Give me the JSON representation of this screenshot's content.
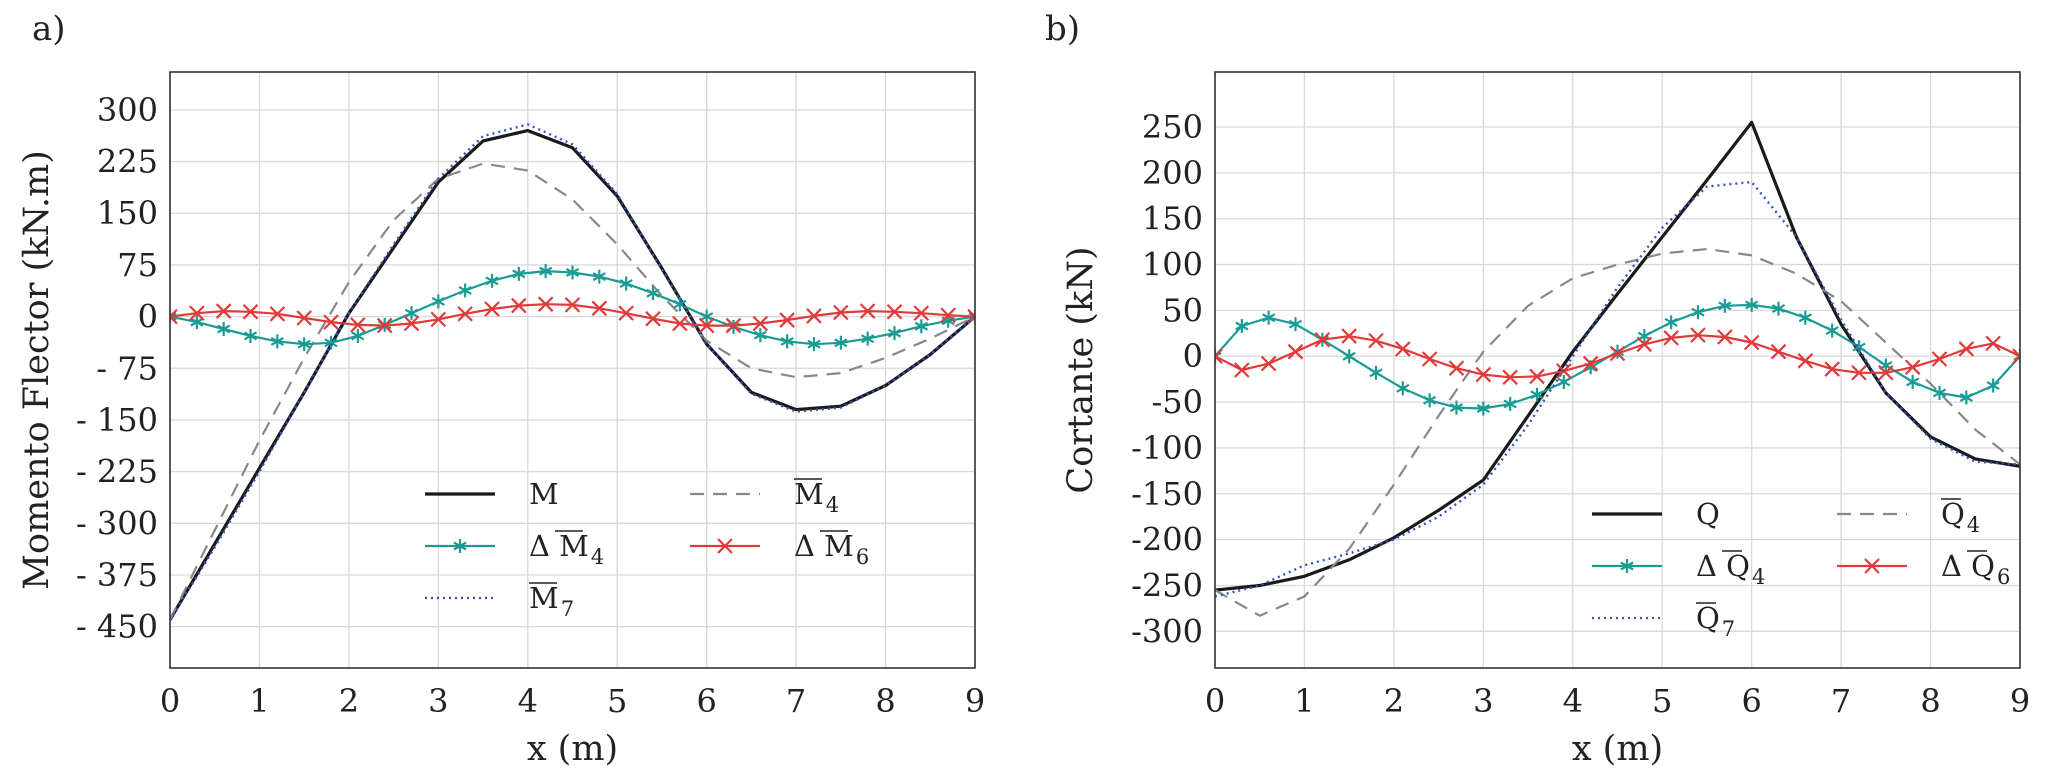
{
  "chart_data": [
    {
      "type": "line",
      "panel_label": "a)",
      "xlabel": "x (m)",
      "ylabel": "Momento Flector (kN.m)",
      "xlim": [
        0,
        9
      ],
      "ylim": [
        -510,
        355
      ],
      "x_ticks": [
        0,
        1,
        2,
        3,
        4,
        5,
        6,
        7,
        8,
        9
      ],
      "x_tick_labels": [
        "0",
        "1",
        "2",
        "3",
        "4",
        "5",
        "6",
        "7",
        "8",
        "9"
      ],
      "y_ticks": [
        300,
        225,
        150,
        75,
        0,
        -75,
        -150,
        -225,
        -300,
        -375,
        -450
      ],
      "y_tick_labels": [
        "300",
        "225",
        "150",
        "75",
        "0",
        "- 75",
        "- 150",
        "- 225",
        "- 300",
        "- 375",
        "- 450"
      ],
      "grid": true,
      "legend_position": "bottom-center",
      "series": [
        {
          "name": "M",
          "sub": "",
          "bar": false,
          "delta": false,
          "style": "solid",
          "color": "#1a1a1a",
          "marker": "none",
          "x": [
            0,
            0.5,
            1,
            1.5,
            2,
            2.5,
            3,
            3.5,
            4,
            4.5,
            5,
            5.5,
            6,
            6.5,
            7,
            7.5,
            8,
            8.5,
            9
          ],
          "y": [
            -440,
            -330,
            -220,
            -110,
            5,
            100,
            195,
            255,
            270,
            245,
            175,
            70,
            -40,
            -110,
            -135,
            -130,
            -100,
            -55,
            0
          ]
        },
        {
          "name": "M",
          "sub": "4",
          "bar": true,
          "delta": false,
          "style": "dashed",
          "color": "#888888",
          "marker": "none",
          "x": [
            0,
            0.5,
            1,
            1.5,
            2,
            2.5,
            3,
            3.5,
            4,
            4.5,
            5,
            5.5,
            6,
            6.5,
            7,
            7.5,
            8,
            8.5,
            9
          ],
          "y": [
            -440,
            -310,
            -180,
            -60,
            50,
            140,
            200,
            222,
            212,
            170,
            105,
            30,
            -35,
            -75,
            -88,
            -82,
            -60,
            -32,
            0
          ]
        },
        {
          "name": "M",
          "sub": "4",
          "bar": true,
          "delta": true,
          "style": "solid",
          "color": "#1a9c94",
          "marker": "star",
          "x": [
            0,
            0.3,
            0.6,
            0.9,
            1.2,
            1.5,
            1.8,
            2.1,
            2.4,
            2.7,
            3.0,
            3.3,
            3.6,
            3.9,
            4.2,
            4.5,
            4.8,
            5.1,
            5.4,
            5.7,
            6.0,
            6.3,
            6.6,
            6.9,
            7.2,
            7.5,
            7.8,
            8.1,
            8.4,
            8.7,
            9.0
          ],
          "y": [
            0,
            -8,
            -18,
            -28,
            -36,
            -40,
            -38,
            -28,
            -12,
            5,
            22,
            38,
            52,
            62,
            66,
            64,
            58,
            48,
            34,
            18,
            0,
            -15,
            -27,
            -36,
            -40,
            -38,
            -32,
            -24,
            -14,
            -6,
            0
          ]
        },
        {
          "name": "M",
          "sub": "6",
          "bar": true,
          "delta": true,
          "style": "solid",
          "color": "#e03a3a",
          "marker": "x",
          "x": [
            0,
            0.3,
            0.6,
            0.9,
            1.2,
            1.5,
            1.8,
            2.1,
            2.4,
            2.7,
            3.0,
            3.3,
            3.6,
            3.9,
            4.2,
            4.5,
            4.8,
            5.1,
            5.4,
            5.7,
            6.0,
            6.3,
            6.6,
            6.9,
            7.2,
            7.5,
            7.8,
            8.1,
            8.4,
            8.7,
            9.0
          ],
          "y": [
            0,
            5,
            8,
            7,
            4,
            -2,
            -8,
            -12,
            -13,
            -10,
            -4,
            4,
            11,
            16,
            18,
            17,
            12,
            5,
            -3,
            -10,
            -13,
            -13,
            -10,
            -5,
            1,
            6,
            8,
            7,
            5,
            2,
            0
          ]
        },
        {
          "name": "M",
          "sub": "7",
          "bar": true,
          "delta": false,
          "style": "dotted",
          "color": "#3355bb",
          "marker": "none",
          "x": [
            0,
            0.5,
            1,
            1.5,
            2,
            2.5,
            3,
            3.5,
            4,
            4.5,
            5,
            5.5,
            6,
            6.5,
            7,
            7.5,
            8,
            8.5,
            9
          ],
          "y": [
            -440,
            -335,
            -225,
            -110,
            5,
            105,
            200,
            262,
            279,
            250,
            178,
            68,
            -40,
            -112,
            -138,
            -132,
            -100,
            -55,
            0
          ]
        }
      ]
    },
    {
      "type": "line",
      "panel_label": "b)",
      "xlabel": "x (m)",
      "ylabel": "Cortante (kN)",
      "xlim": [
        0,
        9
      ],
      "ylim": [
        -340,
        310
      ],
      "x_ticks": [
        0,
        1,
        2,
        3,
        4,
        5,
        6,
        7,
        8,
        9
      ],
      "x_tick_labels": [
        "0",
        "1",
        "2",
        "3",
        "4",
        "5",
        "6",
        "7",
        "8",
        "9"
      ],
      "y_ticks": [
        250,
        200,
        150,
        100,
        50,
        0,
        -50,
        -100,
        -150,
        -200,
        -250,
        -300
      ],
      "y_tick_labels": [
        "250",
        "200",
        "150",
        "100",
        "50",
        "0",
        "-50",
        "-100",
        "-150",
        "-200",
        "-250",
        "-300"
      ],
      "grid": true,
      "legend_position": "bottom-right",
      "series": [
        {
          "name": "Q",
          "sub": "",
          "bar": false,
          "delta": false,
          "style": "solid",
          "color": "#1a1a1a",
          "marker": "none",
          "x": [
            0,
            0.5,
            1,
            1.5,
            2,
            2.5,
            3,
            3.5,
            4,
            4.5,
            5,
            5.5,
            6,
            6.5,
            7,
            7.5,
            8,
            8.5,
            9
          ],
          "y": [
            -255,
            -250,
            -240,
            -222,
            -198,
            -168,
            -135,
            -65,
            5,
            68,
            130,
            192,
            255,
            130,
            35,
            -40,
            -88,
            -112,
            -120
          ]
        },
        {
          "name": "Q",
          "sub": "4",
          "bar": true,
          "delta": false,
          "style": "dashed",
          "color": "#888888",
          "marker": "none",
          "x": [
            0,
            0.5,
            1,
            1.5,
            2,
            2.5,
            3,
            3.5,
            4,
            4.5,
            5,
            5.5,
            6,
            6.5,
            7,
            7.5,
            8,
            8.5,
            9
          ],
          "y": [
            -255,
            -283,
            -262,
            -210,
            -140,
            -65,
            5,
            55,
            85,
            100,
            112,
            117,
            110,
            90,
            60,
            15,
            -30,
            -80,
            -118
          ]
        },
        {
          "name": "Q",
          "sub": "4",
          "bar": true,
          "delta": true,
          "style": "solid",
          "color": "#1a9c94",
          "marker": "star",
          "x": [
            0,
            0.3,
            0.6,
            0.9,
            1.2,
            1.5,
            1.8,
            2.1,
            2.4,
            2.7,
            3.0,
            3.3,
            3.6,
            3.9,
            4.2,
            4.5,
            4.8,
            5.1,
            5.4,
            5.7,
            6.0,
            6.3,
            6.6,
            6.9,
            7.2,
            7.5,
            7.8,
            8.1,
            8.4,
            8.7,
            9.0
          ],
          "y": [
            0,
            33,
            42,
            35,
            18,
            0,
            -18,
            -35,
            -48,
            -56,
            -57,
            -52,
            -42,
            -28,
            -12,
            5,
            22,
            37,
            48,
            55,
            56,
            52,
            42,
            28,
            10,
            -10,
            -28,
            -40,
            -45,
            -32,
            0
          ]
        },
        {
          "name": "Q",
          "sub": "6",
          "bar": true,
          "delta": true,
          "style": "solid",
          "color": "#e03a3a",
          "marker": "x",
          "x": [
            0,
            0.3,
            0.6,
            0.9,
            1.2,
            1.5,
            1.8,
            2.1,
            2.4,
            2.7,
            3.0,
            3.3,
            3.6,
            3.9,
            4.2,
            4.5,
            4.8,
            5.1,
            5.4,
            5.7,
            6.0,
            6.3,
            6.6,
            6.9,
            7.2,
            7.5,
            7.8,
            8.1,
            8.4,
            8.7,
            9.0
          ],
          "y": [
            0,
            -15,
            -8,
            5,
            18,
            22,
            17,
            8,
            -3,
            -13,
            -20,
            -23,
            -22,
            -16,
            -8,
            3,
            13,
            20,
            23,
            21,
            15,
            5,
            -5,
            -14,
            -18,
            -18,
            -12,
            -3,
            8,
            14,
            0
          ]
        },
        {
          "name": "Q",
          "sub": "7",
          "bar": true,
          "delta": false,
          "style": "dotted",
          "color": "#3355bb",
          "marker": "none",
          "x": [
            0,
            0.5,
            1,
            1.5,
            2,
            2.5,
            3,
            3.5,
            4,
            4.5,
            5,
            5.5,
            6,
            6.5,
            7,
            7.5,
            8,
            8.5,
            9
          ],
          "y": [
            -262,
            -250,
            -228,
            -215,
            -200,
            -175,
            -140,
            -75,
            0,
            75,
            140,
            185,
            190,
            130,
            40,
            -40,
            -90,
            -115,
            -118
          ]
        }
      ]
    }
  ]
}
